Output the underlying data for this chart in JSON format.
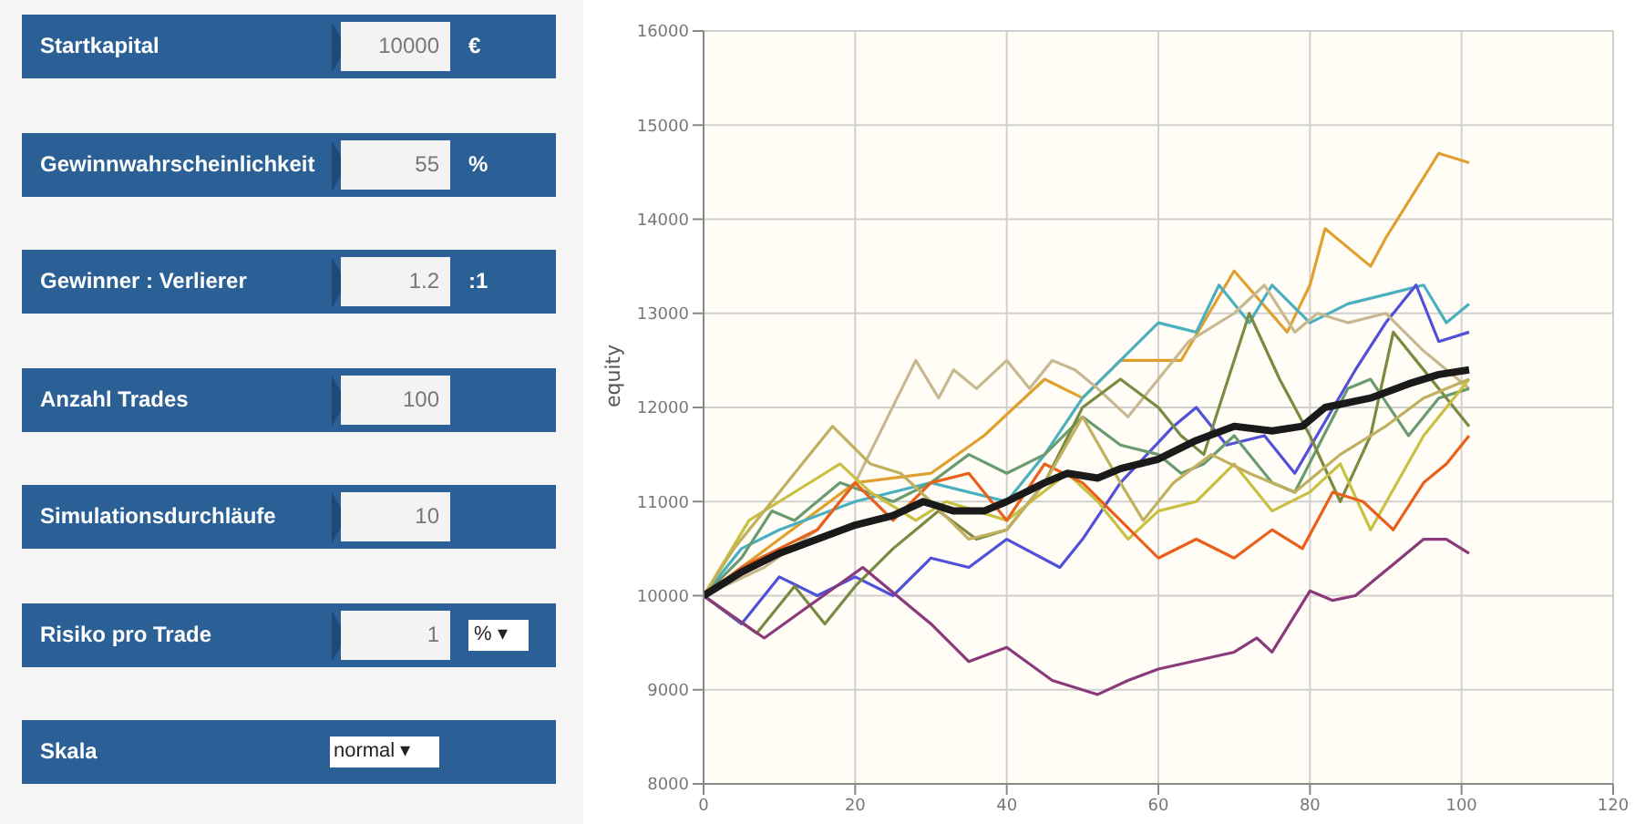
{
  "chart_data": [
    {
      "type": "other",
      "categories": [
        "Startkapital",
        "Gewinnwahrscheinlichkeit",
        "Gewinner : Verlierer",
        "Anzahl Trades",
        "Simulationsdurchläufe",
        "Risiko pro Trade",
        "Skala"
      ],
      "annotations": [
        "10000",
        "€",
        "55",
        "%",
        "1.2",
        ":1",
        "100",
        "10",
        "1",
        "% ▾",
        "normal ▾"
      ]
    },
    {
      "type": "line",
      "ylabel": "equity",
      "xlim": [
        0,
        120
      ],
      "xticks": [
        0,
        20,
        40,
        60,
        80,
        100,
        120
      ],
      "ylim": [
        8000,
        16000
      ],
      "yticks": [
        8000,
        9000,
        10000,
        11000,
        12000,
        13000,
        14000,
        15000,
        16000
      ],
      "grid": true,
      "marker": "none",
      "line_style": "solid",
      "series": [
        {
          "color": "#e0a030",
          "x": [
            0,
            10,
            20,
            30,
            37,
            45,
            50,
            55,
            63,
            70,
            77,
            80,
            82,
            88,
            90,
            97,
            101
          ],
          "values": [
            10000,
            10600,
            11200,
            11300,
            11700,
            12300,
            12100,
            12500,
            12500,
            13450,
            12800,
            13300,
            13900,
            13500,
            13800,
            14700,
            14600
          ]
        },
        {
          "color": "#4ab0c0",
          "x": [
            0,
            5,
            10,
            20,
            30,
            40,
            45,
            50,
            55,
            60,
            65,
            68,
            72,
            75,
            80,
            85,
            90,
            95,
            98,
            101
          ],
          "values": [
            10000,
            10500,
            10700,
            11000,
            11200,
            11000,
            11500,
            12100,
            12500,
            12900,
            12800,
            13300,
            12900,
            13300,
            12900,
            13100,
            13200,
            13300,
            12900,
            13100
          ]
        },
        {
          "color": "#5050d8",
          "x": [
            0,
            5,
            10,
            15,
            20,
            25,
            30,
            35,
            40,
            47,
            50,
            55,
            62,
            65,
            69,
            74,
            78,
            86,
            90,
            94,
            97,
            101
          ],
          "values": [
            10000,
            9700,
            10200,
            10000,
            10200,
            10000,
            10400,
            10300,
            10600,
            10300,
            10600,
            11200,
            11800,
            12000,
            11600,
            11700,
            11300,
            12400,
            12900,
            13300,
            12700,
            12800
          ]
        },
        {
          "color": "#c8b890",
          "x": [
            0,
            8,
            15,
            20,
            28,
            31,
            33,
            36,
            40,
            43,
            46,
            49,
            52,
            56,
            60,
            64,
            70,
            74,
            78,
            81,
            85,
            90,
            95,
            101
          ],
          "values": [
            10000,
            10300,
            10700,
            11200,
            12500,
            12100,
            12400,
            12200,
            12500,
            12200,
            12500,
            12400,
            12200,
            11900,
            12300,
            12700,
            13000,
            13300,
            12800,
            13000,
            12900,
            13000,
            12600,
            12200
          ]
        },
        {
          "color": "#6a9a70",
          "x": [
            0,
            5,
            9,
            12,
            18,
            25,
            30,
            35,
            40,
            45,
            50,
            55,
            60,
            63,
            66,
            70,
            75,
            78,
            85,
            88,
            93,
            97,
            101
          ],
          "values": [
            10000,
            10400,
            10900,
            10800,
            11200,
            11000,
            11200,
            11500,
            11300,
            11500,
            11900,
            11600,
            11500,
            11300,
            11400,
            11700,
            11200,
            11100,
            12200,
            12300,
            11700,
            12100,
            12200
          ]
        },
        {
          "color": "#7a8a40",
          "x": [
            0,
            7,
            12,
            16,
            20,
            25,
            31,
            36,
            40,
            45,
            50,
            55,
            60,
            63,
            66,
            72,
            76,
            80,
            84,
            88,
            91,
            94,
            101
          ],
          "values": [
            10000,
            9600,
            10100,
            9700,
            10100,
            10500,
            10900,
            10600,
            10700,
            11200,
            12000,
            12300,
            12000,
            11700,
            11500,
            13000,
            12300,
            11700,
            11000,
            11700,
            12800,
            12500,
            11800
          ]
        },
        {
          "color": "#c8c040",
          "x": [
            0,
            6,
            10,
            18,
            22,
            28,
            32,
            40,
            48,
            52,
            56,
            60,
            65,
            70,
            75,
            80,
            84,
            88,
            95,
            101
          ],
          "values": [
            10000,
            10800,
            11000,
            11400,
            11100,
            10800,
            11000,
            10800,
            11300,
            11000,
            10600,
            10900,
            11000,
            11400,
            10900,
            11100,
            11400,
            10700,
            11700,
            12300
          ]
        },
        {
          "color": "#e8601a",
          "x": [
            0,
            5,
            10,
            15,
            20,
            25,
            30,
            35,
            40,
            45,
            50,
            55,
            60,
            65,
            70,
            75,
            79,
            83,
            87,
            91,
            95,
            98,
            101
          ],
          "values": [
            10000,
            10300,
            10500,
            10700,
            11200,
            10800,
            11200,
            11300,
            10800,
            11400,
            11200,
            10800,
            10400,
            10600,
            10400,
            10700,
            10500,
            11100,
            11000,
            10700,
            11200,
            11400,
            11700
          ]
        },
        {
          "color": "#8a3a7a",
          "x": [
            0,
            8,
            21,
            30,
            35,
            40,
            46,
            52,
            56,
            60,
            70,
            73,
            75,
            80,
            83,
            86,
            89,
            95,
            98,
            101
          ],
          "values": [
            10000,
            9550,
            10300,
            9700,
            9300,
            9450,
            9100,
            8950,
            9100,
            9220,
            9400,
            9550,
            9400,
            10050,
            9950,
            10000,
            10200,
            10600,
            10600,
            10450
          ]
        },
        {
          "color": "#c0b060",
          "x": [
            0,
            4,
            10,
            17,
            22,
            26,
            30,
            35,
            40,
            45,
            50,
            55,
            58,
            62,
            67,
            72,
            78,
            84,
            90,
            95,
            101
          ],
          "values": [
            10000,
            10500,
            11100,
            11800,
            11400,
            11300,
            11000,
            10600,
            10700,
            11200,
            11900,
            11200,
            10800,
            11200,
            11500,
            11300,
            11100,
            11500,
            11800,
            12100,
            12300
          ]
        },
        {
          "color": "#1a1a1a",
          "x": [
            0,
            5,
            10,
            15,
            20,
            25,
            29,
            33,
            37,
            40,
            45,
            48,
            52,
            55,
            60,
            65,
            70,
            75,
            79,
            82,
            88,
            93,
            97,
            101
          ],
          "values": [
            10000,
            10250,
            10450,
            10600,
            10750,
            10850,
            11000,
            10900,
            10900,
            11000,
            11200,
            11300,
            11250,
            11350,
            11450,
            11650,
            11800,
            11750,
            11800,
            12000,
            12100,
            12250,
            12350,
            12400
          ]
        }
      ]
    }
  ]
}
